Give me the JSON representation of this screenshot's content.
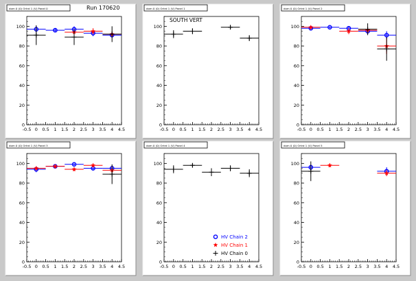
{
  "run_label": "Run 170620",
  "colors": {
    "chain0": "#000000",
    "chain1": "#ff0000",
    "chain2": "#0000ff",
    "pad_bg": "#ffffff",
    "canvas_bg": "#c9c9c9"
  },
  "legend": [
    {
      "label": "HV Chain 2",
      "marker": "circle",
      "color_key": "chain2"
    },
    {
      "label": "HV Chain 1",
      "marker": "star",
      "color_key": "chain1"
    },
    {
      "label": "HV Chain 0",
      "marker": "plus",
      "color_key": "chain0"
    }
  ],
  "chart_data": [
    {
      "type": "scatter",
      "title": "dom 0 (0) Ortrd 1 (V) Panel 0",
      "xlim": [
        -0.5,
        4.5
      ],
      "ylim": [
        0,
        110
      ],
      "xticks": [
        "-0.5",
        "0",
        "0.5",
        "1",
        "1.5",
        "2",
        "2.5",
        "3",
        "3.5",
        "4",
        "4.5"
      ],
      "yticks": [
        "0",
        "20",
        "40",
        "60",
        "80",
        "100"
      ],
      "series": [
        {
          "color_key": "chain2",
          "points": [
            {
              "x": 0,
              "y": 97,
              "err": 3
            },
            {
              "x": 1,
              "y": 96,
              "err": 2
            },
            {
              "x": 2,
              "y": 97,
              "err": 3
            },
            {
              "x": 3,
              "y": 93,
              "err": 3
            },
            {
              "x": 4,
              "y": 91,
              "err": 2
            }
          ]
        },
        {
          "color_key": "chain1",
          "points": [
            {
              "x": 2,
              "y": 94,
              "err": 3
            },
            {
              "x": 3,
              "y": 95,
              "err": 3
            },
            {
              "x": 4,
              "y": 92,
              "err": 3
            }
          ]
        },
        {
          "color_key": "chain0",
          "points": [
            {
              "x": 0,
              "y": 91,
              "err": 10
            },
            {
              "x": 2,
              "y": 89,
              "err": 8
            },
            {
              "x": 4,
              "y": 92,
              "err": 8
            }
          ]
        }
      ]
    },
    {
      "type": "scatter",
      "title": "dom 0 (0) Ortrd 1 (V) Panel 1",
      "annotation": "SOUTH VERT",
      "xlim": [
        -0.5,
        4.5
      ],
      "ylim": [
        0,
        110
      ],
      "xticks": [
        "-0.5",
        "0",
        "0.5",
        "1",
        "1.5",
        "2",
        "2.5",
        "3",
        "3.5",
        "4",
        "4.5"
      ],
      "yticks": [
        "0",
        "20",
        "40",
        "60",
        "80",
        "100"
      ],
      "series": [
        {
          "color_key": "chain0",
          "points": [
            {
              "x": 0,
              "y": 92,
              "err": 4
            },
            {
              "x": 1,
              "y": 95,
              "err": 3
            },
            {
              "x": 3,
              "y": 99,
              "err": 2
            },
            {
              "x": 4,
              "y": 88,
              "err": 3
            }
          ]
        }
      ]
    },
    {
      "type": "scatter",
      "title": "dom 0 (0) Ortrd 1 (V) Panel 2",
      "xlim": [
        -0.5,
        4.5
      ],
      "ylim": [
        0,
        110
      ],
      "xticks": [
        "-0.5",
        "0",
        "0.5",
        "1",
        "1.5",
        "2",
        "2.5",
        "3",
        "3.5",
        "4",
        "4.5"
      ],
      "yticks": [
        "0",
        "20",
        "40",
        "60",
        "80",
        "100"
      ],
      "series": [
        {
          "color_key": "chain2",
          "points": [
            {
              "x": 0,
              "y": 98,
              "err": 2
            },
            {
              "x": 1,
              "y": 99,
              "err": 1
            },
            {
              "x": 2,
              "y": 98,
              "err": 2
            },
            {
              "x": 3,
              "y": 95,
              "err": 3
            },
            {
              "x": 4,
              "y": 91,
              "err": 4
            }
          ]
        },
        {
          "color_key": "chain1",
          "points": [
            {
              "x": 0,
              "y": 99,
              "err": 2
            },
            {
              "x": 2,
              "y": 95,
              "err": 3
            },
            {
              "x": 3,
              "y": 96,
              "err": 3
            },
            {
              "x": 4,
              "y": 80,
              "err": 8
            }
          ]
        },
        {
          "color_key": "chain0",
          "points": [
            {
              "x": 3,
              "y": 97,
              "err": 6
            },
            {
              "x": 4,
              "y": 77,
              "err": 12
            }
          ]
        }
      ]
    },
    {
      "type": "scatter",
      "title": "dom 0 (0) Ortrd 1 (V) Panel 3",
      "xlim": [
        -0.5,
        4.5
      ],
      "ylim": [
        0,
        110
      ],
      "xticks": [
        "-0.5",
        "0",
        "0.5",
        "1",
        "1.5",
        "2",
        "2.5",
        "3",
        "3.5",
        "4",
        "4.5"
      ],
      "yticks": [
        "0",
        "20",
        "40",
        "60",
        "80",
        "100"
      ],
      "series": [
        {
          "color_key": "chain2",
          "points": [
            {
              "x": 0,
              "y": 94,
              "err": 3
            },
            {
              "x": 1,
              "y": 97,
              "err": 2
            },
            {
              "x": 2,
              "y": 99,
              "err": 1
            },
            {
              "x": 3,
              "y": 95,
              "err": 2
            },
            {
              "x": 4,
              "y": 95,
              "err": 3
            }
          ]
        },
        {
          "color_key": "chain1",
          "points": [
            {
              "x": 0,
              "y": 95,
              "err": 2
            },
            {
              "x": 1,
              "y": 97,
              "err": 2
            },
            {
              "x": 2,
              "y": 94,
              "err": 2
            },
            {
              "x": 3,
              "y": 98,
              "err": 2
            },
            {
              "x": 4,
              "y": 93,
              "err": 4
            }
          ]
        },
        {
          "color_key": "chain0",
          "points": [
            {
              "x": 4,
              "y": 89,
              "err": 10
            }
          ]
        }
      ]
    },
    {
      "type": "scatter",
      "title": "dom 0 (0) Ortrd 1 (V) Panel 4",
      "xlim": [
        -0.5,
        4.5
      ],
      "ylim": [
        0,
        110
      ],
      "xticks": [
        "-0.5",
        "0",
        "0.5",
        "1",
        "1.5",
        "2",
        "2.5",
        "3",
        "3.5",
        "4",
        "4.5"
      ],
      "yticks": [
        "0",
        "20",
        "40",
        "60",
        "80",
        "100"
      ],
      "series": [
        {
          "color_key": "chain0",
          "points": [
            {
              "x": 0,
              "y": 94,
              "err": 4
            },
            {
              "x": 1,
              "y": 98,
              "err": 2
            },
            {
              "x": 2,
              "y": 91,
              "err": 4
            },
            {
              "x": 3,
              "y": 95,
              "err": 3
            },
            {
              "x": 4,
              "y": 90,
              "err": 4
            }
          ]
        }
      ]
    },
    {
      "type": "scatter",
      "title": "dom 0 (0) Ortrd 1 (V) Panel 5",
      "xlim": [
        -0.5,
        4.5
      ],
      "ylim": [
        0,
        110
      ],
      "xticks": [
        "-0.5",
        "0",
        "0.5",
        "1",
        "1.5",
        "2",
        "2.5",
        "3",
        "3.5",
        "4",
        "4.5"
      ],
      "yticks": [
        "0",
        "20",
        "40",
        "60",
        "80",
        "100"
      ],
      "series": [
        {
          "color_key": "chain2",
          "points": [
            {
              "x": 0,
              "y": 96,
              "err": 3
            },
            {
              "x": 4,
              "y": 92,
              "err": 4
            }
          ]
        },
        {
          "color_key": "chain1",
          "points": [
            {
              "x": 1,
              "y": 98,
              "err": 2
            },
            {
              "x": 4,
              "y": 90,
              "err": 3
            }
          ]
        },
        {
          "color_key": "chain0",
          "points": [
            {
              "x": 0,
              "y": 92,
              "err": 10
            }
          ]
        }
      ]
    }
  ]
}
